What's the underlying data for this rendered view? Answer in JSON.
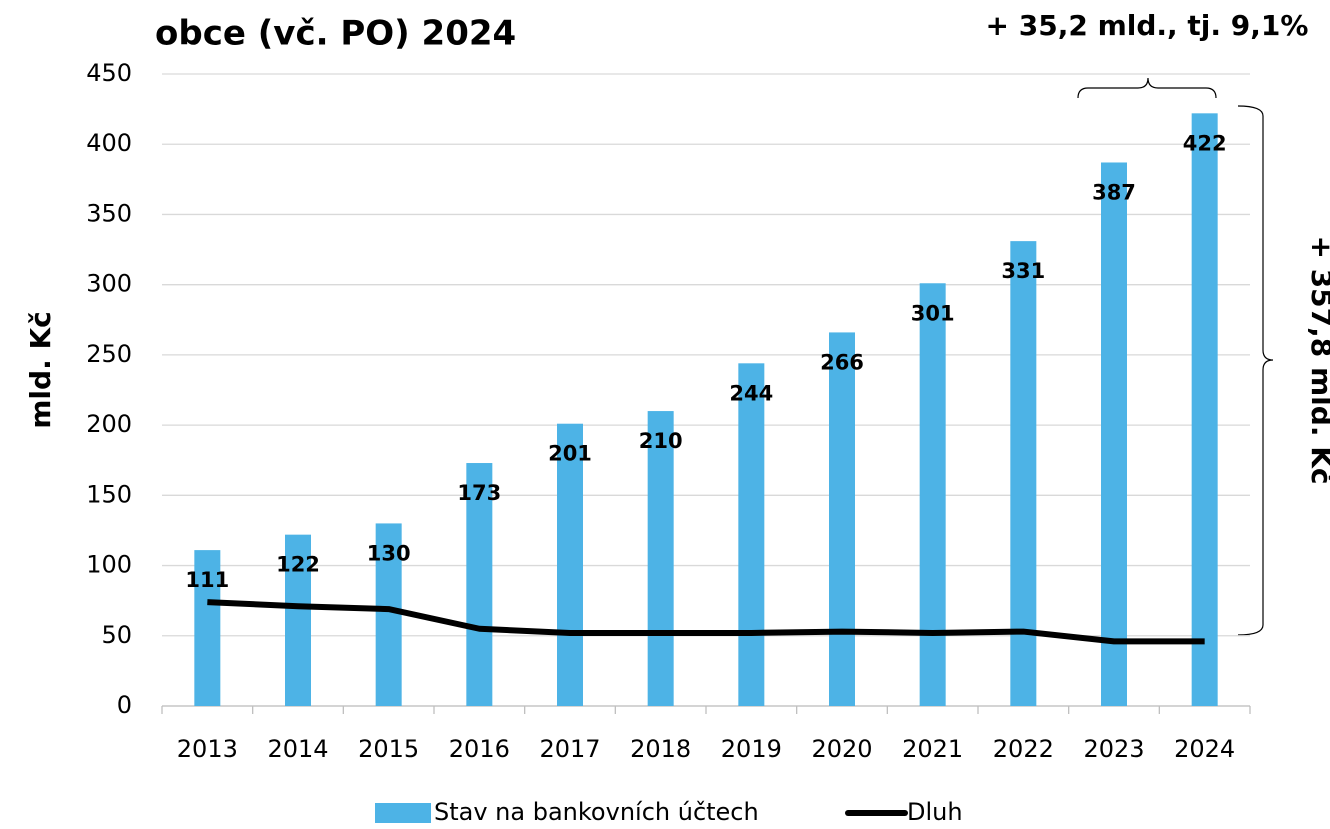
{
  "chart_data": {
    "type": "bar",
    "title": "obce (vč. PO) 2024",
    "y_label": "mld. Kč",
    "categories": [
      "2013",
      "2014",
      "2015",
      "2016",
      "2017",
      "2018",
      "2019",
      "2020",
      "2021",
      "2022",
      "2023",
      "2024"
    ],
    "series": [
      {
        "name": "Stav na bankovních účtech",
        "type": "bar",
        "color": "#4db3e6",
        "values": [
          111,
          122,
          130,
          173,
          201,
          210,
          244,
          266,
          301,
          331,
          387,
          422
        ]
      },
      {
        "name": "Dluh",
        "type": "line",
        "color": "#000000",
        "values": [
          74,
          71,
          69,
          55,
          52,
          52,
          52,
          53,
          52,
          53,
          46,
          46
        ]
      }
    ],
    "ylim": [
      0,
      450
    ],
    "yticks": [
      0,
      50,
      100,
      150,
      200,
      250,
      300,
      350,
      400,
      450
    ],
    "grid": true,
    "legend": "bottom",
    "annotations": [
      "+ 35,2 mld., tj. 9,1%",
      "+ 357,8 mld. Kč"
    ]
  }
}
